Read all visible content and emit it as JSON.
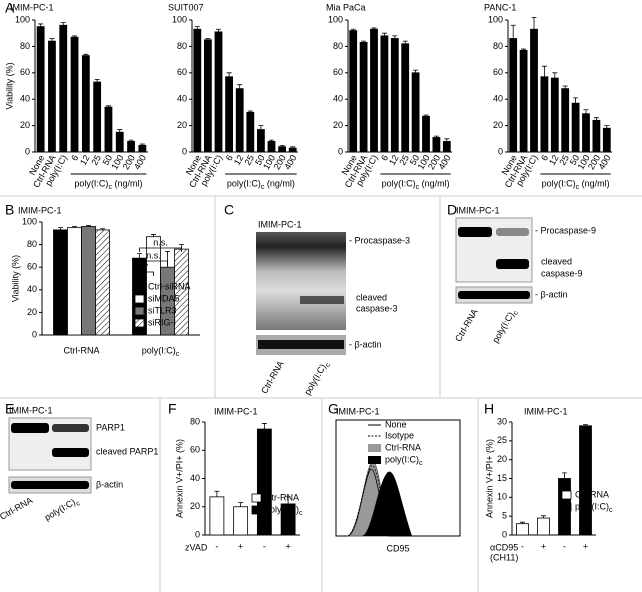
{
  "panel_labels": [
    "A",
    "B",
    "C",
    "D",
    "E",
    "F",
    "G",
    "H"
  ],
  "chart_data": [
    {
      "type": "bar",
      "title": "IMIM-PC-1",
      "ylabel": "Viability (%)",
      "categories": [
        "None",
        "Ctrl-RNA",
        "poly(I:C)",
        "6",
        "12",
        "25",
        "50",
        "100",
        "200",
        "400"
      ],
      "values": [
        95,
        84,
        96,
        87,
        73,
        53,
        34,
        15,
        8,
        5
      ],
      "errors": [
        2,
        2,
        2,
        1,
        1,
        2,
        1,
        2,
        1,
        1
      ],
      "color": "#000000",
      "ylim": [
        0,
        100
      ],
      "yticks": [
        0,
        20,
        40,
        60,
        80,
        100
      ],
      "group_label": "poly(I:C)c (ng/ml)"
    },
    {
      "type": "bar",
      "title": "SUIT007",
      "categories": [
        "None",
        "Ctrl-RNA",
        "poly(I:C)",
        "6",
        "12",
        "25",
        "50",
        "100",
        "200",
        "400"
      ],
      "values": [
        93,
        85,
        91,
        57,
        48,
        30,
        17,
        8,
        4,
        3
      ],
      "errors": [
        2,
        1,
        2,
        3,
        3,
        1,
        3,
        1,
        1,
        1
      ],
      "color": "#000000",
      "ylim": [
        0,
        100
      ],
      "yticks": [
        0,
        20,
        40,
        60,
        80,
        100
      ],
      "group_label": "poly(I:C)c (ng/ml)"
    },
    {
      "type": "bar",
      "title": "Mia PaCa",
      "categories": [
        "None",
        "Ctrl-RNA",
        "poly(I:C)",
        "6",
        "12",
        "25",
        "50",
        "100",
        "200",
        "400"
      ],
      "values": [
        92,
        83,
        93,
        88,
        86,
        82,
        60,
        27,
        11,
        8
      ],
      "errors": [
        1,
        1,
        1,
        2,
        2,
        2,
        2,
        1,
        1,
        2
      ],
      "color": "#000000",
      "ylim": [
        0,
        100
      ],
      "yticks": [
        0,
        20,
        40,
        60,
        80,
        100
      ],
      "group_label": "poly(I:C)c (ng/ml)"
    },
    {
      "type": "bar",
      "title": "PANC-1",
      "categories": [
        "None",
        "Ctrl-RNA",
        "poly(I:C)",
        "6",
        "12",
        "25",
        "50",
        "100",
        "200",
        "400"
      ],
      "values": [
        86,
        77,
        93,
        57,
        56,
        48,
        37,
        29,
        24,
        18
      ],
      "errors": [
        10,
        1,
        9,
        8,
        4,
        2,
        4,
        3,
        2,
        2
      ],
      "color": "#000000",
      "ylim": [
        0,
        100
      ],
      "yticks": [
        0,
        20,
        40,
        60,
        80,
        100
      ],
      "group_label": "poly(I:C)c (ng/ml)"
    },
    {
      "type": "bar",
      "title": "IMIM-PC-1",
      "ylabel": "Viability (%)",
      "categories": [
        "Ctrl-RNA",
        "poly(I:C)c"
      ],
      "series": [
        {
          "name": "Ctrl-siRNA",
          "color": "#000000",
          "values": [
            93,
            68
          ],
          "errors": [
            2,
            4
          ]
        },
        {
          "name": "siMDA5",
          "color": "#ffffff",
          "values": [
            95,
            87
          ],
          "errors": [
            1,
            2
          ]
        },
        {
          "name": "siTLR3",
          "color": "#777777",
          "values": [
            96,
            60
          ],
          "errors": [
            1,
            14
          ]
        },
        {
          "name": "siRIG-I",
          "color": "#ffffff",
          "pattern": "hatch",
          "values": [
            93,
            76
          ],
          "errors": [
            1,
            4
          ]
        }
      ],
      "ylim": [
        0,
        100
      ],
      "yticks": [
        0,
        20,
        40,
        60,
        80,
        100
      ],
      "annotations": [
        "*",
        "n.s.",
        "n.s."
      ]
    },
    {
      "type": "bar",
      "title": "IMIM-PC-1",
      "ylabel": "Annexin V+/PI+ (%)",
      "categories": [
        "-",
        "+",
        "-",
        "+"
      ],
      "xlabel": [
        "zVAD"
      ],
      "series": [
        {
          "name": "Ctr-RNA",
          "color": "#ffffff",
          "values": [
            27,
            20,
            null,
            null
          ],
          "errors": [
            4,
            3,
            null,
            null
          ]
        },
        {
          "name": "poly(I:C)c",
          "color": "#000000",
          "values": [
            null,
            null,
            75,
            22
          ],
          "errors": [
            null,
            null,
            4,
            5
          ]
        }
      ],
      "ylim": [
        0,
        80
      ],
      "yticks": [
        0,
        20,
        40,
        60,
        80
      ]
    },
    {
      "type": "bar",
      "title": "IMIM-PC-1",
      "ylabel": "Annexin V+/PI+ (%)",
      "categories": [
        "-",
        "+",
        "-",
        "+"
      ],
      "xlabel": [
        "αCD95",
        "(CH11)"
      ],
      "series": [
        {
          "name": "Ctr-RNA",
          "color": "#ffffff",
          "values": [
            3,
            4.5,
            null,
            null
          ],
          "errors": [
            0.4,
            0.6,
            null,
            null
          ]
        },
        {
          "name": "poly(I:C)c",
          "color": "#000000",
          "values": [
            null,
            null,
            15,
            29
          ],
          "errors": [
            null,
            null,
            1.5,
            0.3
          ]
        }
      ],
      "ylim": [
        0,
        30
      ],
      "yticks": [
        0,
        5,
        10,
        15,
        20,
        25,
        30
      ]
    }
  ],
  "blots": {
    "C": {
      "title": "IMIM-PC-1",
      "labels": [
        "- Procaspase-3",
        "cleaved",
        "caspase-3",
        "- β-actin"
      ],
      "lanes": [
        "Ctrl-RNA",
        "poly(I:C)c"
      ]
    },
    "D": {
      "title": "IMIM-PC-1",
      "labels": [
        "- Procaspase-9",
        "cleaved",
        "caspase-9",
        "- β-actin"
      ],
      "lanes": [
        "Ctrl-RNA",
        "poly(I:C)c"
      ]
    },
    "E": {
      "title": "IMIM-PC-1",
      "labels": [
        "PARP1",
        "cleaved PARP1",
        "β-actin"
      ],
      "lanes": [
        "Ctrl-RNA",
        "poly(I:C)c"
      ]
    }
  },
  "flow": {
    "title": "IMIM-PC-1",
    "legend": [
      "None",
      "Isotype",
      "Ctrl-RNA",
      "poly(I:C)c"
    ],
    "xlabel": "CD95"
  }
}
